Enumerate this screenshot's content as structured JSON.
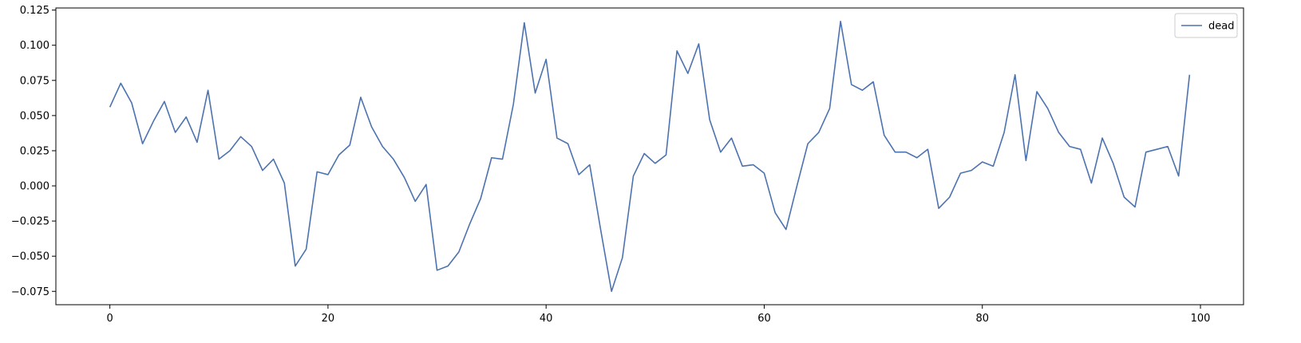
{
  "chart_data": {
    "type": "line",
    "title": "",
    "xlabel": "",
    "ylabel": "",
    "xlim": [
      -4.95,
      103.95
    ],
    "ylim": [
      -0.0845,
      0.1265
    ],
    "x_ticks": [
      0,
      20,
      40,
      60,
      80,
      100
    ],
    "x_tick_labels": [
      "0",
      "20",
      "40",
      "60",
      "80",
      "100"
    ],
    "y_ticks": [
      -0.075,
      -0.05,
      -0.025,
      0.0,
      0.025,
      0.05,
      0.075,
      0.1,
      0.125
    ],
    "y_tick_labels": [
      "−0.075",
      "−0.050",
      "−0.025",
      "0.000",
      "0.025",
      "0.050",
      "0.075",
      "0.100",
      "0.125"
    ],
    "grid": false,
    "legend": {
      "position": "top-right"
    },
    "series": [
      {
        "name": "dead",
        "color": "#4c72b0",
        "x": [
          0,
          1,
          2,
          3,
          4,
          5,
          6,
          7,
          8,
          9,
          10,
          11,
          12,
          13,
          14,
          15,
          16,
          17,
          18,
          19,
          20,
          21,
          22,
          23,
          24,
          25,
          26,
          27,
          28,
          29,
          30,
          31,
          32,
          33,
          34,
          35,
          36,
          37,
          38,
          39,
          40,
          41,
          42,
          43,
          44,
          45,
          46,
          47,
          48,
          49,
          50,
          51,
          52,
          53,
          54,
          55,
          56,
          57,
          58,
          59,
          60,
          61,
          62,
          63,
          64,
          65,
          66,
          67,
          68,
          69,
          70,
          71,
          72,
          73,
          74,
          75,
          76,
          77,
          78,
          79,
          80,
          81,
          82,
          83,
          84,
          85,
          86,
          87,
          88,
          89,
          90,
          91,
          92,
          93,
          94,
          95,
          96,
          97,
          98,
          99
        ],
        "y": [
          0.056,
          0.073,
          0.059,
          0.03,
          0.046,
          0.06,
          0.038,
          0.049,
          0.031,
          0.068,
          0.019,
          0.025,
          0.035,
          0.028,
          0.011,
          0.019,
          0.002,
          -0.057,
          -0.045,
          0.01,
          0.008,
          0.022,
          0.029,
          0.063,
          0.042,
          0.028,
          0.019,
          0.006,
          -0.011,
          0.001,
          -0.06,
          -0.057,
          -0.047,
          -0.027,
          -0.009,
          0.02,
          0.019,
          0.058,
          0.116,
          0.066,
          0.09,
          0.034,
          0.03,
          0.008,
          0.015,
          -0.031,
          -0.075,
          -0.051,
          0.007,
          0.023,
          0.016,
          0.022,
          0.096,
          0.08,
          0.101,
          0.047,
          0.024,
          0.034,
          0.014,
          0.015,
          0.009,
          -0.019,
          -0.031,
          0.0,
          0.03,
          0.038,
          0.055,
          0.117,
          0.072,
          0.068,
          0.074,
          0.036,
          0.024,
          0.024,
          0.02,
          0.026,
          -0.016,
          -0.008,
          0.009,
          0.011,
          0.017,
          0.014,
          0.038,
          0.079,
          0.018,
          0.067,
          0.055,
          0.038,
          0.028,
          0.026,
          0.002,
          0.034,
          0.016,
          -0.008,
          -0.015,
          0.024,
          0.026,
          0.028,
          0.007,
          0.079
        ]
      }
    ]
  }
}
